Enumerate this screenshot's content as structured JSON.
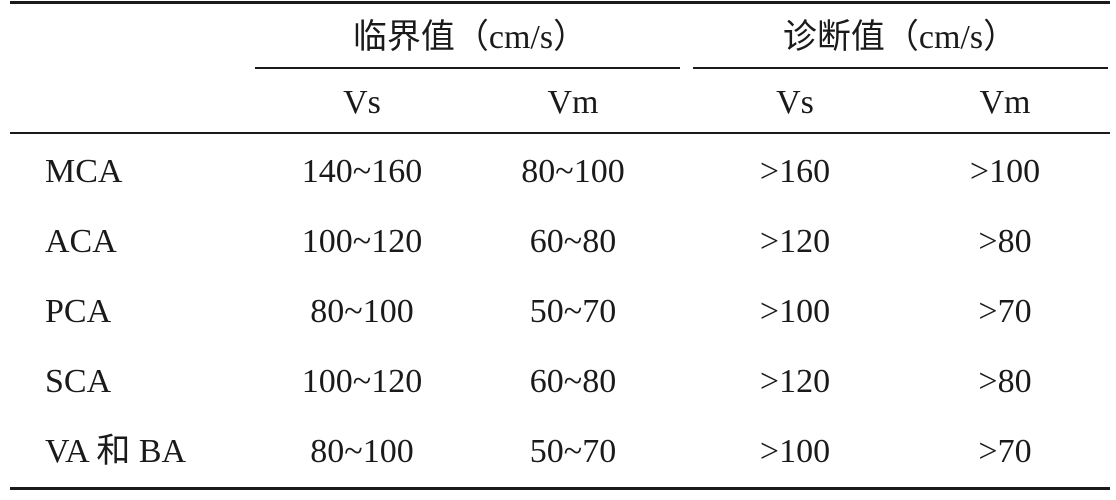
{
  "table": {
    "groups": [
      "临界值（cm/s）",
      "诊断值（cm/s）"
    ],
    "subheaders": [
      "Vs",
      "Vm",
      "Vs",
      "Vm"
    ],
    "rows": [
      [
        "MCA",
        "140~160",
        "80~100",
        ">160",
        ">100"
      ],
      [
        "ACA",
        "100~120",
        "60~80",
        ">120",
        ">80"
      ],
      [
        "PCA",
        "80~100",
        "50~70",
        ">100",
        ">70"
      ],
      [
        "SCA",
        "100~120",
        "60~80",
        ">120",
        ">80"
      ],
      [
        "VA 和 BA",
        "80~100",
        "50~70",
        ">100",
        ">70"
      ]
    ]
  }
}
